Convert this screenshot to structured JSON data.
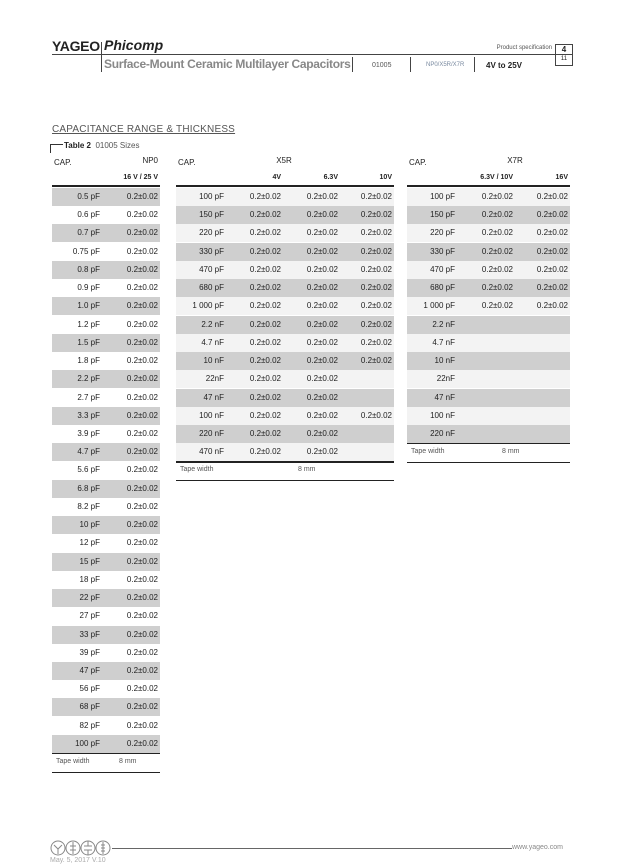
{
  "header": {
    "logo": "YAGEO",
    "brand2": "Phicomp",
    "product_spec": "Product specification",
    "page": "4",
    "total_pages": "11",
    "title": "Surface-Mount Ceramic Multilayer Capacitors",
    "size": "01005",
    "dielectrics": "NP0/X5R/X7R",
    "voltage": "4V to 25V"
  },
  "section": {
    "heading": "CAPACITANCE RANGE & THICKNESS",
    "table_label": "Table 2",
    "table_caption": "01005 Sizes"
  },
  "np0": {
    "cap_header": "CAP.",
    "dielectric": "NP0",
    "voltages": [
      "16 V / 25 V"
    ],
    "rows": [
      [
        "0.5 pF",
        "0.2±0.02"
      ],
      [
        "0.6 pF",
        "0.2±0.02"
      ],
      [
        "0.7 pF",
        "0.2±0.02"
      ],
      [
        "0.75 pF",
        "0.2±0.02"
      ],
      [
        "0.8 pF",
        "0.2±0.02"
      ],
      [
        "0.9 pF",
        "0.2±0.02"
      ],
      [
        "1.0 pF",
        "0.2±0.02"
      ],
      [
        "1.2 pF",
        "0.2±0.02"
      ],
      [
        "1.5 pF",
        "0.2±0.02"
      ],
      [
        "1.8 pF",
        "0.2±0.02"
      ],
      [
        "2.2 pF",
        "0.2±0.02"
      ],
      [
        "2.7 pF",
        "0.2±0.02"
      ],
      [
        "3.3 pF",
        "0.2±0.02"
      ],
      [
        "3.9 pF",
        "0.2±0.02"
      ],
      [
        "4.7 pF",
        "0.2±0.02"
      ],
      [
        "5.6 pF",
        "0.2±0.02"
      ],
      [
        "6.8 pF",
        "0.2±0.02"
      ],
      [
        "8.2 pF",
        "0.2±0.02"
      ],
      [
        "10 pF",
        "0.2±0.02"
      ],
      [
        "12 pF",
        "0.2±0.02"
      ],
      [
        "15 pF",
        "0.2±0.02"
      ],
      [
        "18 pF",
        "0.2±0.02"
      ],
      [
        "22 pF",
        "0.2±0.02"
      ],
      [
        "27 pF",
        "0.2±0.02"
      ],
      [
        "33 pF",
        "0.2±0.02"
      ],
      [
        "39 pF",
        "0.2±0.02"
      ],
      [
        "47 pF",
        "0.2±0.02"
      ],
      [
        "56 pF",
        "0.2±0.02"
      ],
      [
        "68 pF",
        "0.2±0.02"
      ],
      [
        "82 pF",
        "0.2±0.02"
      ],
      [
        "100 pF",
        "0.2±0.02"
      ]
    ],
    "tape_label": "Tape width",
    "tape_value": "8 mm"
  },
  "x5r": {
    "cap_header": "CAP.",
    "dielectric": "X5R",
    "voltages": [
      "4V",
      "6.3V",
      "10V"
    ],
    "rows": [
      [
        "100 pF",
        "0.2±0.02",
        "0.2±0.02",
        "0.2±0.02"
      ],
      [
        "150 pF",
        "0.2±0.02",
        "0.2±0.02",
        "0.2±0.02"
      ],
      [
        "220 pF",
        "0.2±0.02",
        "0.2±0.02",
        "0.2±0.02"
      ],
      [
        "330 pF",
        "0.2±0.02",
        "0.2±0.02",
        "0.2±0.02"
      ],
      [
        "470 pF",
        "0.2±0.02",
        "0.2±0.02",
        "0.2±0.02"
      ],
      [
        "680 pF",
        "0.2±0.02",
        "0.2±0.02",
        "0.2±0.02"
      ],
      [
        "1 000 pF",
        "0.2±0.02",
        "0.2±0.02",
        "0.2±0.02"
      ],
      [
        "2.2 nF",
        "0.2±0.02",
        "0.2±0.02",
        "0.2±0.02"
      ],
      [
        "4.7 nF",
        "0.2±0.02",
        "0.2±0.02",
        "0.2±0.02"
      ],
      [
        "10 nF",
        "0.2±0.02",
        "0.2±0.02",
        "0.2±0.02"
      ],
      [
        "22nF",
        "0.2±0.02",
        "0.2±0.02",
        ""
      ],
      [
        "47 nF",
        "0.2±0.02",
        "0.2±0.02",
        ""
      ],
      [
        "100 nF",
        "0.2±0.02",
        "0.2±0.02",
        "0.2±0.02"
      ],
      [
        "220 nF",
        "0.2±0.02",
        "0.2±0.02",
        ""
      ],
      [
        "470 nF",
        "0.2±0.02",
        "0.2±0.02",
        ""
      ]
    ],
    "tape_label": "Tape width",
    "tape_value": "8 mm"
  },
  "x7r": {
    "cap_header": "CAP.",
    "dielectric": "X7R",
    "voltages": [
      "6.3V / 10V",
      "16V"
    ],
    "rows": [
      [
        "100 pF",
        "0.2±0.02",
        "0.2±0.02"
      ],
      [
        "150 pF",
        "0.2±0.02",
        "0.2±0.02"
      ],
      [
        "220 pF",
        "0.2±0.02",
        "0.2±0.02"
      ],
      [
        "330 pF",
        "0.2±0.02",
        "0.2±0.02"
      ],
      [
        "470 pF",
        "0.2±0.02",
        "0.2±0.02"
      ],
      [
        "680 pF",
        "0.2±0.02",
        "0.2±0.02"
      ],
      [
        "1 000 pF",
        "0.2±0.02",
        "0.2±0.02"
      ],
      [
        "2.2 nF",
        "",
        ""
      ],
      [
        "4.7 nF",
        "",
        ""
      ],
      [
        "10 nF",
        "",
        ""
      ],
      [
        "22nF",
        "",
        ""
      ],
      [
        "47 nF",
        "",
        ""
      ],
      [
        "100 nF",
        "",
        ""
      ],
      [
        "220 nF",
        "",
        ""
      ]
    ],
    "tape_label": "Tape width",
    "tape_value": "8 mm"
  },
  "footer": {
    "url": "www.yageo.com",
    "date": "May. 5, 2017 V.10"
  },
  "icons": [
    "antenna-icon",
    "capacitor-icon",
    "resistor-icon",
    "inductor-icon"
  ]
}
